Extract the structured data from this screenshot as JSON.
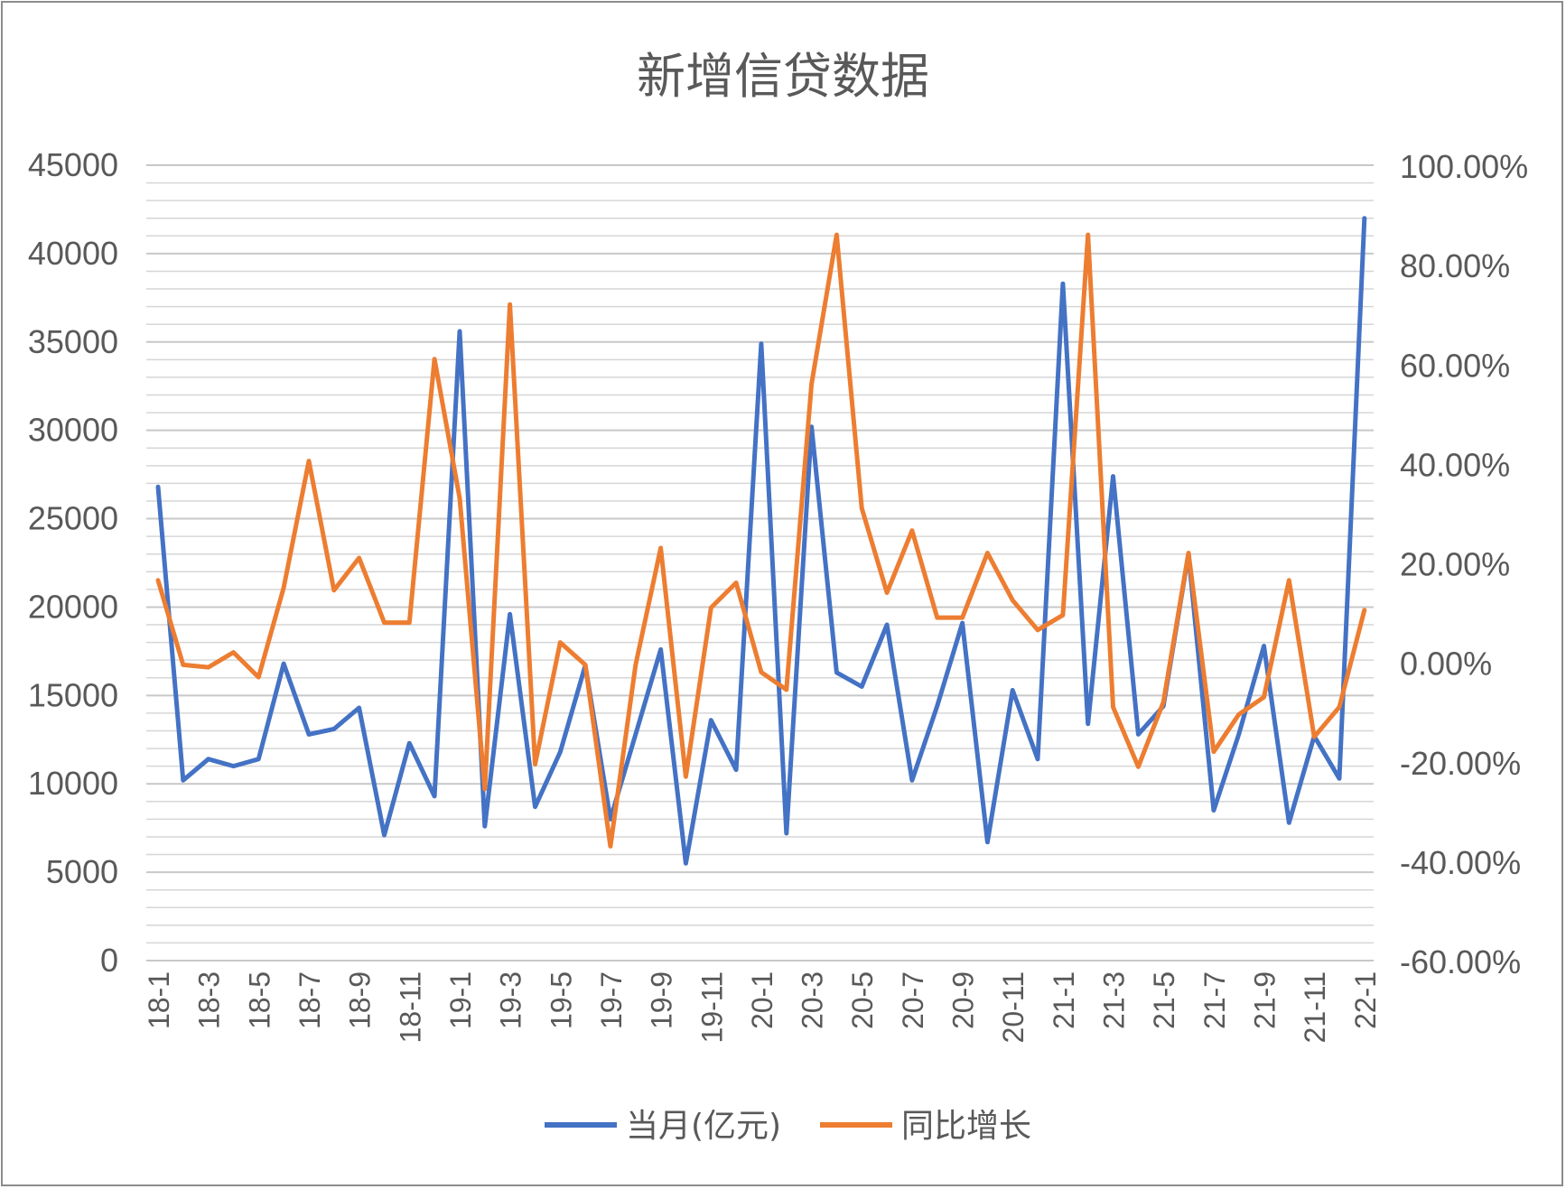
{
  "chart_data": {
    "type": "line",
    "title": "新增信贷数据",
    "xlabel": "",
    "ylabel": "",
    "y_left": {
      "min": 0,
      "max": 45000,
      "ticks": [
        "0",
        "5000",
        "10000",
        "15000",
        "20000",
        "25000",
        "30000",
        "35000",
        "40000",
        "45000"
      ],
      "minor_step": 1000
    },
    "y_right": {
      "min": -0.6,
      "max": 1.0,
      "ticks": [
        "-60.00%",
        "-40.00%",
        "-20.00%",
        "0.00%",
        "20.00%",
        "40.00%",
        "60.00%",
        "80.00%",
        "100.00%"
      ]
    },
    "x_tick_labels": [
      "18-1",
      "18-3",
      "18-5",
      "18-7",
      "18-9",
      "18-11",
      "19-1",
      "19-3",
      "19-5",
      "19-7",
      "19-9",
      "19-11",
      "20-1",
      "20-3",
      "20-5",
      "20-7",
      "20-9",
      "20-11",
      "21-1",
      "21-3",
      "21-5",
      "21-7",
      "21-9",
      "21-11",
      "22-1"
    ],
    "categories": [
      "18-1",
      "18-2",
      "18-3",
      "18-4",
      "18-5",
      "18-6",
      "18-7",
      "18-8",
      "18-9",
      "18-10",
      "18-11",
      "18-12",
      "19-1",
      "19-2",
      "19-3",
      "19-4",
      "19-5",
      "19-6",
      "19-7",
      "19-8",
      "19-9",
      "19-10",
      "19-11",
      "19-12",
      "20-1",
      "20-2",
      "20-3",
      "20-4",
      "20-5",
      "20-6",
      "20-7",
      "20-8",
      "20-9",
      "20-10",
      "20-11",
      "20-12",
      "21-1",
      "21-2",
      "21-3",
      "21-4",
      "21-5",
      "21-6",
      "21-7",
      "21-8",
      "21-9",
      "21-10",
      "21-11",
      "21-12",
      "22-1"
    ],
    "series": [
      {
        "name": "当月(亿元)",
        "axis": "left",
        "color": "#4472C4",
        "values": [
          26800,
          10200,
          11400,
          11000,
          11400,
          16800,
          12800,
          13100,
          14300,
          7100,
          12300,
          9300,
          35600,
          7600,
          19600,
          8700,
          11800,
          16700,
          8000,
          12800,
          17600,
          5500,
          13600,
          10800,
          34900,
          7200,
          30200,
          16300,
          15500,
          19000,
          10200,
          14400,
          19100,
          6700,
          15300,
          11400,
          38300,
          13400,
          27400,
          12800,
          14400,
          23000,
          8500,
          12800,
          17800,
          7800,
          12700,
          10300,
          42000
        ]
      },
      {
        "name": "同比增长",
        "axis": "right",
        "color": "#ED7D31",
        "values": [
          0.165,
          -0.005,
          -0.01,
          0.02,
          -0.03,
          0.15,
          0.405,
          0.145,
          0.21,
          0.08,
          0.08,
          0.61,
          0.33,
          -0.255,
          0.72,
          -0.205,
          0.04,
          -0.005,
          -0.37,
          -0.005,
          0.23,
          -0.23,
          0.11,
          0.16,
          -0.02,
          -0.055,
          0.56,
          0.86,
          0.31,
          0.14,
          0.265,
          0.09,
          0.09,
          0.22,
          0.125,
          0.065,
          0.095,
          0.86,
          -0.09,
          -0.21,
          -0.08,
          0.22,
          -0.18,
          -0.105,
          -0.07,
          0.165,
          -0.15,
          -0.09,
          0.105
        ]
      }
    ],
    "legend_position": "bottom",
    "grid": true
  }
}
